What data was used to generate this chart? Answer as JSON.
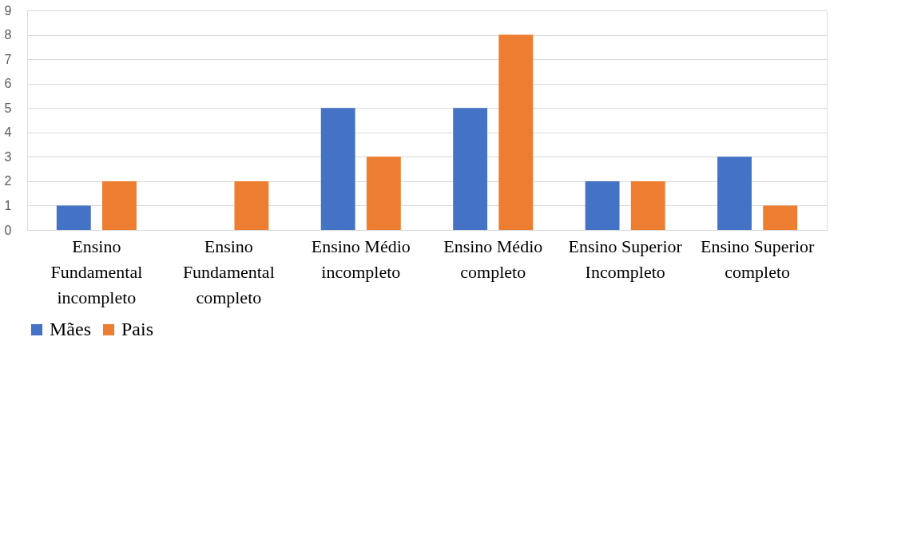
{
  "chart_data": {
    "type": "bar",
    "categories": [
      "Ensino Fundamental incompleto",
      "Ensino Fundamental completo",
      "Ensino Médio incompleto",
      "Ensino Médio completo",
      "Ensino Superior Incompleto",
      "Ensino Superior completo"
    ],
    "series": [
      {
        "name": "Mães",
        "color": "#4472c4",
        "values": [
          1,
          0,
          5,
          5,
          2,
          3
        ]
      },
      {
        "name": "Pais",
        "color": "#ed7d31",
        "values": [
          2,
          2,
          3,
          8,
          2,
          1
        ]
      }
    ],
    "ylim": [
      0,
      9
    ],
    "yticks": [
      0,
      1,
      2,
      3,
      4,
      5,
      6,
      7,
      8,
      9
    ],
    "grid": "y",
    "legend": "bottom"
  }
}
